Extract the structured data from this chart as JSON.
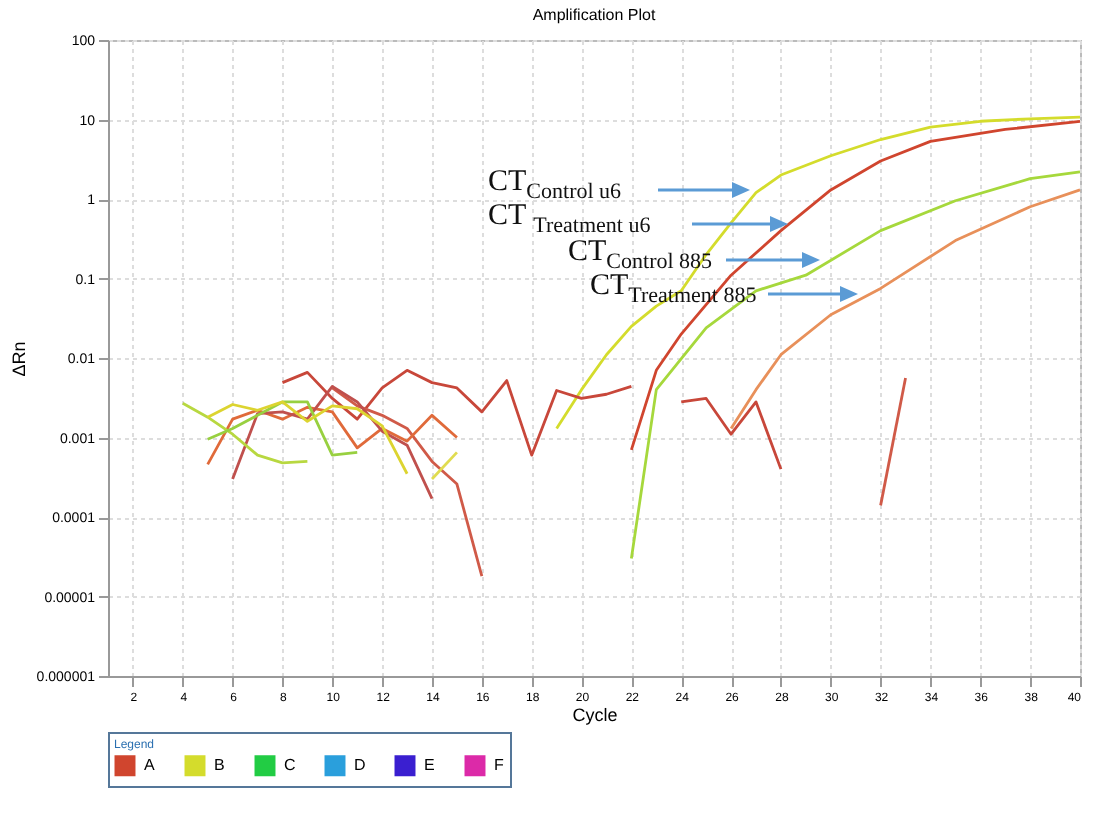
{
  "chart_data": {
    "type": "line",
    "title": "Amplification Plot",
    "xlabel": "Cycle",
    "ylabel": "ΔRn",
    "legend_title": "Legend",
    "log": "y",
    "grid": true,
    "legend": "bottom",
    "marker": "none",
    "line_style": "solid",
    "xlim": [
      1,
      40
    ],
    "xticks": [
      2,
      4,
      6,
      8,
      10,
      12,
      14,
      16,
      18,
      20,
      22,
      24,
      26,
      28,
      30,
      32,
      34,
      36,
      38,
      40
    ],
    "ylim": [
      1e-06,
      100
    ],
    "yticks": [
      {
        "value": 1e-06,
        "label": "0.000001"
      },
      {
        "value": 1e-05,
        "label": "0.00001"
      },
      0.0001,
      0.001,
      0.01,
      0.1,
      1,
      10,
      100
    ],
    "annotations": [
      "CT$_{Control u6}$",
      "CT $_{Treatment u6}$",
      "CT$_{Control 885}$",
      "CT$_{Treatment 885}$"
    ],
    "series": [
      {
        "name": "A",
        "color": "#d0452e",
        "x": [
          22,
          23,
          24,
          26,
          28,
          30,
          32,
          34,
          37,
          40
        ],
        "values": [
          0.0007,
          0.007,
          0.02,
          0.11,
          0.4,
          1.3,
          3,
          5.3,
          7.5,
          9.5
        ]
      },
      {
        "name": "B",
        "color": "#d4dc2c",
        "x": [
          19,
          20,
          21,
          22,
          23,
          24,
          25,
          26,
          27,
          28,
          30,
          32,
          34,
          36,
          38,
          40
        ],
        "values": [
          0.0013,
          0.004,
          0.011,
          0.025,
          0.045,
          0.07,
          0.2,
          0.5,
          1.2,
          2,
          3.5,
          5.6,
          8,
          9.5,
          10.2,
          10.7
        ]
      },
      {
        "name": "C",
        "color": "#22cc44",
        "values": [
          null
        ]
      },
      {
        "name": "D",
        "color": "#2a9fdc",
        "values": [
          null
        ]
      },
      {
        "name": "E",
        "color": "#3a1fd0",
        "values": [
          null
        ]
      },
      {
        "name": "F",
        "color": "#dc2aa8",
        "values": [
          null
        ]
      },
      {
        "color": "#a6d83c",
        "x": [
          22,
          23,
          25,
          27,
          29,
          32,
          35,
          38,
          40
        ],
        "values": [
          3e-05,
          0.004,
          0.024,
          0.07,
          0.11,
          0.4,
          0.95,
          1.8,
          2.2
        ]
      },
      {
        "color": "#e8905a",
        "x": [
          26,
          27,
          28,
          30,
          32,
          35,
          38,
          40
        ],
        "values": [
          0.0013,
          0.004,
          0.011,
          0.035,
          0.075,
          0.3,
          0.8,
          1.3
        ]
      },
      {
        "color": "#c8473a",
        "x": [
          8,
          9,
          10,
          11,
          12,
          13,
          14,
          15,
          16,
          17,
          18,
          19,
          20,
          21,
          22
        ],
        "values": [
          0.0049,
          0.0066,
          0.0031,
          0.0017,
          0.0042,
          0.007,
          0.0049,
          0.0042,
          0.0021,
          0.0052,
          0.0006,
          0.0039,
          0.0031,
          0.0035,
          0.0044
        ]
      },
      {
        "color": "#d05a48",
        "x": [
          10,
          11,
          12,
          13,
          14,
          15,
          16
        ],
        "values": [
          0.0042,
          0.0025,
          0.0019,
          0.0013,
          0.0005,
          0.00026,
          1.8e-05
        ]
      },
      {
        "color": "#e06a3a",
        "x": [
          5,
          6,
          7,
          8,
          9,
          10,
          11,
          12,
          13,
          14,
          15
        ],
        "values": [
          0.00046,
          0.0017,
          0.0022,
          0.0017,
          0.0024,
          0.0021,
          0.00074,
          0.0013,
          0.0009,
          0.0019,
          0.001
        ]
      },
      {
        "color": "#c0504d",
        "x": [
          6,
          7,
          8,
          9,
          10,
          11,
          12,
          13,
          14
        ],
        "values": [
          0.0003,
          0.002,
          0.0021,
          0.0017,
          0.0044,
          0.0028,
          0.0012,
          0.0008,
          0.00017
        ]
      },
      {
        "color": "#b8d840",
        "x": [
          4,
          5,
          6,
          7,
          8,
          9
        ],
        "values": [
          0.0027,
          0.0018,
          0.0011,
          0.0006,
          0.00048,
          0.0005
        ]
      },
      {
        "color": "#98d040",
        "x": [
          5,
          6,
          7,
          8,
          9,
          10,
          11
        ],
        "values": [
          0.00095,
          0.0013,
          0.0019,
          0.0028,
          0.0028,
          0.0006,
          0.00065
        ]
      },
      {
        "color": "#dcd430",
        "x": [
          5,
          6,
          7,
          8,
          9,
          10,
          11,
          12,
          13
        ],
        "values": [
          0.0018,
          0.0026,
          0.0022,
          0.0028,
          0.0016,
          0.0025,
          0.0023,
          0.0014,
          0.00035
        ]
      },
      {
        "color": "#e0dc50",
        "x": [
          14,
          15
        ],
        "values": [
          0.0003,
          0.00065
        ]
      },
      {
        "color": "#c8473a",
        "x": [
          24,
          25,
          26,
          27,
          28
        ],
        "values": [
          0.0028,
          0.0031,
          0.0011,
          0.0028,
          0.0004
        ]
      },
      {
        "color": "#d05a48",
        "x": [
          32,
          33
        ],
        "values": [
          0.00014,
          0.0056
        ]
      }
    ]
  }
}
